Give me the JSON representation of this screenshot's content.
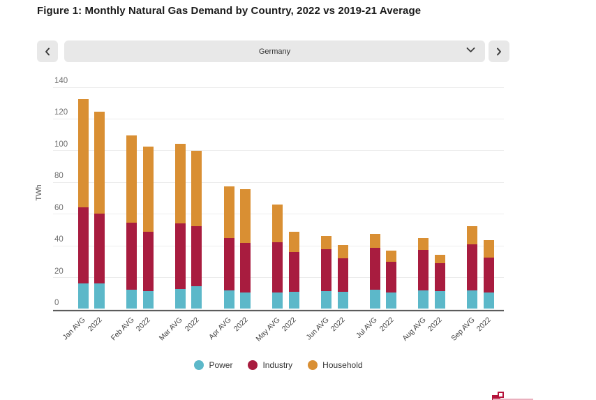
{
  "figure_title": "Figure 1: Monthly Natural Gas Demand by Country, 2022 vs 2019-21 Average",
  "country_selector": {
    "selected": "Germany",
    "prev_icon": "chevron-left",
    "next_icon": "chevron-right",
    "open_icon": "chevron-down"
  },
  "chart_data": {
    "type": "bar",
    "stacked": true,
    "title": "Monthly Natural Gas Demand by Country, 2022 vs 2019-21 Average",
    "ylabel": "TWh",
    "xlabel": "",
    "ylim": [
      0,
      140
    ],
    "ytick_step": 20,
    "grid": true,
    "legend_position": "bottom",
    "categories": [
      "Jan AVG",
      "2022",
      "Feb AVG",
      "2022",
      "Mar AVG",
      "2022",
      "Apr AVG",
      "2022",
      "May AVG",
      "2022",
      "Jun AVG",
      "2022",
      "Jul AVG",
      "2022",
      "Aug AVG",
      "2022",
      "Sep AVG",
      "2022"
    ],
    "series": [
      {
        "name": "Power",
        "color": "#5cb8c9",
        "values": [
          16,
          16,
          12,
          11,
          12.5,
          14,
          11.5,
          10,
          10,
          10.5,
          11,
          10.5,
          12,
          10,
          11.5,
          11,
          11.5,
          10
        ]
      },
      {
        "name": "Industry",
        "color": "#a81c3f",
        "values": [
          48,
          44,
          42,
          37.5,
          41,
          38,
          33,
          31.5,
          32,
          25,
          26.5,
          21,
          26.5,
          19.5,
          25.5,
          17.5,
          29,
          22
        ]
      },
      {
        "name": "Household",
        "color": "#d98f33",
        "values": [
          68,
          64,
          55,
          53.5,
          50.5,
          47.5,
          32.5,
          34,
          23.5,
          13,
          8.5,
          8.5,
          8.5,
          7,
          7.5,
          5.5,
          11.5,
          11
        ]
      }
    ],
    "totals": [
      132,
      124,
      109,
      102,
      104,
      99.5,
      77,
      75.5,
      65.5,
      48.5,
      46,
      40,
      47,
      36.5,
      44.5,
      34,
      52,
      43
    ]
  }
}
